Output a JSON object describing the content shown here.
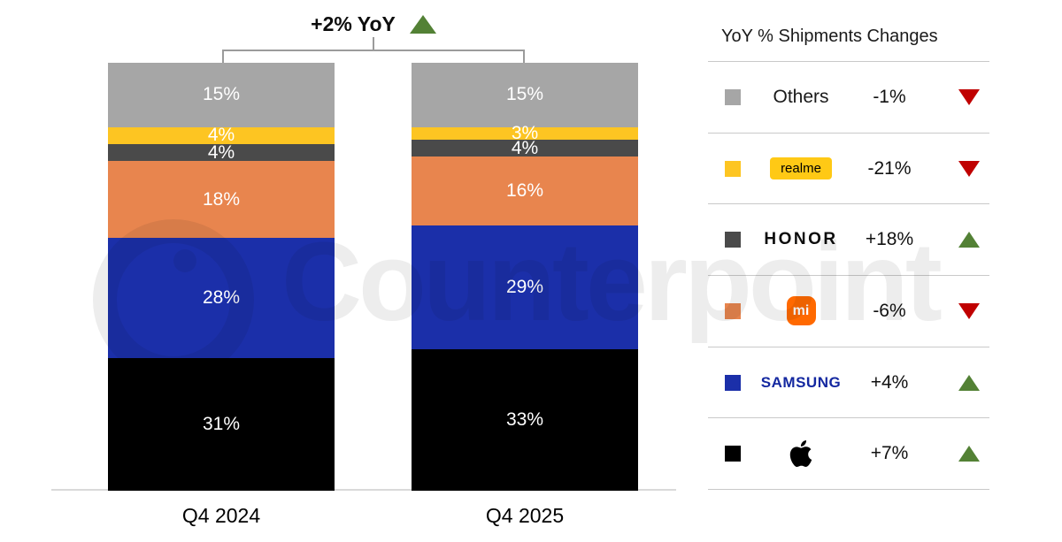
{
  "header": {
    "yoy_label": "+2% YoY",
    "arrow_direction": "up"
  },
  "chart_data": {
    "type": "bar",
    "stacked": true,
    "unit": "%",
    "title": "+2% YoY",
    "categories": [
      "Q4 2024",
      "Q4 2025"
    ],
    "series_top_to_bottom": [
      {
        "name": "Others",
        "color": "#a6a6a6",
        "values": [
          15,
          15
        ]
      },
      {
        "name": "realme",
        "color": "#fdc522",
        "values": [
          4,
          3
        ]
      },
      {
        "name": "HONOR",
        "color": "#4a4a4a",
        "values": [
          4,
          4
        ]
      },
      {
        "name": "Xiaomi",
        "color": "#e8854e",
        "values": [
          18,
          16
        ]
      },
      {
        "name": "Samsung",
        "color": "#1b2fa9",
        "values": [
          28,
          29
        ]
      },
      {
        "name": "Apple",
        "color": "#000000",
        "values": [
          31,
          33
        ]
      }
    ],
    "ylim": [
      0,
      100
    ],
    "legend_position": "right",
    "grid": false
  },
  "legend": {
    "title": "YoY % Shipments Changes",
    "rows": [
      {
        "brand": "Others",
        "display": "Others",
        "logo": "others-text",
        "change": "-1%",
        "direction": "down",
        "swatch": "#a6a6a6"
      },
      {
        "brand": "realme",
        "display": "realme",
        "logo": "realme-logo",
        "change": "-21%",
        "direction": "down",
        "swatch": "#fdc522"
      },
      {
        "brand": "HONOR",
        "display": "HONOR",
        "logo": "honor-wordmark",
        "change": "+18%",
        "direction": "up",
        "swatch": "#4a4a4a"
      },
      {
        "brand": "Xiaomi",
        "display": "mi",
        "logo": "xiaomi-mi-logo",
        "change": "-6%",
        "direction": "down",
        "swatch": "#e8854e"
      },
      {
        "brand": "Samsung",
        "display": "SAMSUNG",
        "logo": "samsung-wordmark",
        "change": "+4%",
        "direction": "up",
        "swatch": "#1b2fa9"
      },
      {
        "brand": "Apple",
        "display": "",
        "logo": "apple-logo",
        "change": "+7%",
        "direction": "up",
        "swatch": "#000000"
      }
    ]
  },
  "watermark": {
    "text": "Counterpoint"
  },
  "colors": {
    "up_green": "#538135",
    "down_red": "#c00000",
    "samsung_blue": "#1428a0",
    "realme_yellow": "#ffc915",
    "xiaomi_orange": "#ff6900",
    "baseline_gray": "#d9d9d9",
    "divider_gray": "#c9c9c9",
    "bracket_gray": "#9b9b9b"
  }
}
